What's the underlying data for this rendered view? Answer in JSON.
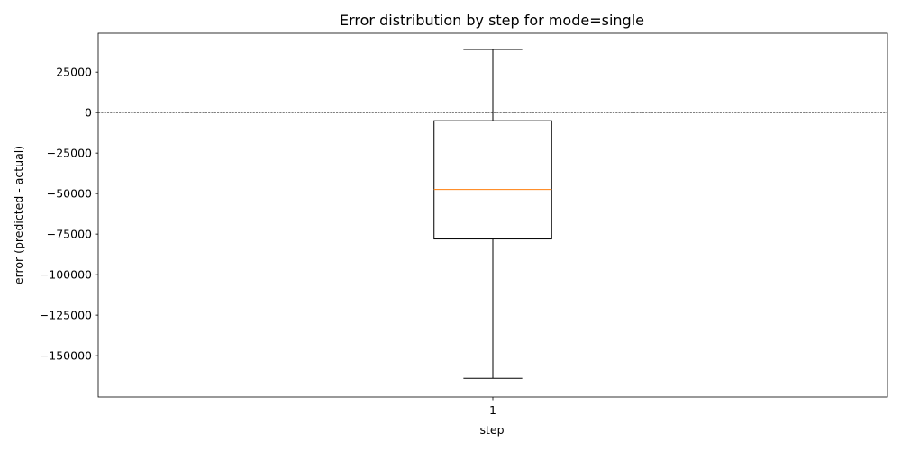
{
  "chart_data": {
    "type": "box",
    "title": "Error distribution by step for mode=single",
    "xlabel": "step",
    "ylabel": "error (predicted - actual)",
    "categories": [
      "1"
    ],
    "boxes": [
      {
        "category": "1",
        "whisker_low": -164000,
        "q1": -78000,
        "median": -47500,
        "q3": -5000,
        "whisker_high": 39000
      }
    ],
    "ylim": [
      -175500,
      49000
    ],
    "yticks": [
      25000,
      0,
      -25000,
      -50000,
      -75000,
      -100000,
      -125000,
      -150000
    ],
    "yticklabels": [
      "25000",
      "0",
      "−25000",
      "−50000",
      "−75000",
      "−100000",
      "−125000",
      "−150000"
    ],
    "reference_line": {
      "y": 0,
      "style": "dashed"
    },
    "grid": false,
    "legend": "none",
    "colors": {
      "box": "#000000",
      "median": "#ff7f0e",
      "whisker": "#000000",
      "reference_line": "#000000"
    }
  }
}
